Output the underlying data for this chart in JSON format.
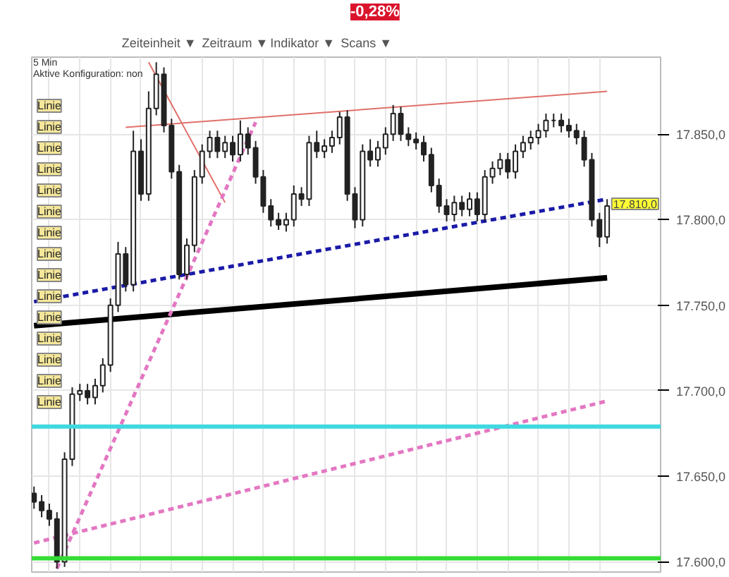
{
  "chart_data": {
    "type": "candlestick",
    "categories": [
      null,
      null,
      null,
      null,
      null,
      null,
      null,
      null,
      null,
      null,
      null,
      null,
      null,
      null,
      null,
      null,
      null,
      null,
      null,
      null,
      null,
      null,
      null,
      null,
      null,
      null,
      null,
      null,
      null,
      null,
      null,
      null,
      null,
      null,
      null,
      null,
      null,
      null,
      null,
      null,
      null,
      null,
      null,
      null,
      null,
      null,
      null,
      null,
      null,
      null,
      null,
      null,
      null,
      null,
      null,
      null,
      null,
      null,
      null,
      null,
      null,
      null,
      null,
      null,
      null,
      null,
      null,
      null,
      null,
      null,
      null,
      null,
      null,
      null,
      null,
      null
    ],
    "ohlc": [
      [
        17640,
        17644,
        17631,
        17635
      ],
      [
        17635,
        17639,
        17626,
        17630
      ],
      [
        17630,
        17634,
        17621,
        17625
      ],
      [
        17625,
        17629,
        17596,
        17600
      ],
      [
        17600,
        17664,
        17597,
        17660
      ],
      [
        17660,
        17702,
        17656,
        17698
      ],
      [
        17698,
        17704,
        17694,
        17700
      ],
      [
        17700,
        17704,
        17692,
        17696
      ],
      [
        17696,
        17707,
        17692,
        17703
      ],
      [
        17703,
        17719,
        17699,
        17715
      ],
      [
        17715,
        17754,
        17711,
        17750
      ],
      [
        17750,
        17787,
        17746,
        17780
      ],
      [
        17780,
        17784,
        17758,
        17762
      ],
      [
        17762,
        17852,
        17758,
        17840
      ],
      [
        17840,
        17847,
        17811,
        17815
      ],
      [
        17815,
        17875,
        17811,
        17865
      ],
      [
        17865,
        17892,
        17861,
        17885
      ],
      [
        17885,
        17889,
        17851,
        17855
      ],
      [
        17855,
        17859,
        17824,
        17828
      ],
      [
        17828,
        17832,
        17765,
        17768
      ],
      [
        17768,
        17789,
        17765,
        17785
      ],
      [
        17785,
        17829,
        17781,
        17825
      ],
      [
        17825,
        17844,
        17821,
        17840
      ],
      [
        17840,
        17852,
        17836,
        17848
      ],
      [
        17848,
        17852,
        17836,
        17840
      ],
      [
        17840,
        17849,
        17836,
        17845
      ],
      [
        17845,
        17849,
        17834,
        17838
      ],
      [
        17838,
        17858,
        17834,
        17850
      ],
      [
        17850,
        17854,
        17838,
        17842
      ],
      [
        17842,
        17846,
        17821,
        17825
      ],
      [
        17825,
        17829,
        17804,
        17808
      ],
      [
        17808,
        17812,
        17796,
        17800
      ],
      [
        17800,
        17804,
        17794,
        17797
      ],
      [
        17797,
        17804,
        17793,
        17800
      ],
      [
        17800,
        17820,
        17796,
        17815
      ],
      [
        17815,
        17819,
        17808,
        17812
      ],
      [
        17812,
        17849,
        17808,
        17845
      ],
      [
        17845,
        17852,
        17836,
        17840
      ],
      [
        17840,
        17847,
        17836,
        17843
      ],
      [
        17843,
        17852,
        17839,
        17848
      ],
      [
        17848,
        17863,
        17844,
        17860
      ],
      [
        17860,
        17864,
        17811,
        17815
      ],
      [
        17815,
        17819,
        17795,
        17800
      ],
      [
        17800,
        17844,
        17796,
        17840
      ],
      [
        17840,
        17847,
        17831,
        17835
      ],
      [
        17835,
        17846,
        17831,
        17842
      ],
      [
        17842,
        17854,
        17838,
        17850
      ],
      [
        17850,
        17867,
        17846,
        17862
      ],
      [
        17862,
        17866,
        17846,
        17850
      ],
      [
        17850,
        17854,
        17843,
        17847
      ],
      [
        17847,
        17851,
        17841,
        17845
      ],
      [
        17845,
        17849,
        17834,
        17838
      ],
      [
        17838,
        17842,
        17816,
        17820
      ],
      [
        17820,
        17824,
        17804,
        17808
      ],
      [
        17808,
        17812,
        17799,
        17803
      ],
      [
        17803,
        17814,
        17799,
        17810
      ],
      [
        17810,
        17814,
        17802,
        17806
      ],
      [
        17806,
        17816,
        17802,
        17812
      ],
      [
        17812,
        17816,
        17799,
        17803
      ],
      [
        17803,
        17829,
        17799,
        17825
      ],
      [
        17825,
        17834,
        17821,
        17830
      ],
      [
        17830,
        17839,
        17826,
        17835
      ],
      [
        17835,
        17839,
        17824,
        17828
      ],
      [
        17828,
        17844,
        17824,
        17840
      ],
      [
        17840,
        17849,
        17836,
        17845
      ],
      [
        17845,
        17852,
        17841,
        17848
      ],
      [
        17848,
        17856,
        17844,
        17852
      ],
      [
        17852,
        17862,
        17848,
        17858
      ],
      [
        17858,
        17862,
        17854,
        17858
      ],
      [
        17858,
        17862,
        17851,
        17855
      ],
      [
        17855,
        17859,
        17848,
        17852
      ],
      [
        17852,
        17856,
        17844,
        17848
      ],
      [
        17848,
        17852,
        17831,
        17835
      ],
      [
        17835,
        17839,
        17796,
        17800
      ],
      [
        17800,
        17804,
        17784,
        17790
      ],
      [
        17790,
        17812,
        17786,
        17808
      ]
    ],
    "color": "#222222",
    "series": [
      {
        "type": "line",
        "color": "#e0706a",
        "values": [
          null,
          null,
          null,
          null,
          null,
          null,
          null,
          null,
          null,
          null,
          null,
          null,
          17854,
          null,
          null,
          null,
          null,
          null,
          null,
          null,
          null,
          null,
          null,
          null,
          null,
          null,
          null,
          null,
          null,
          null,
          null,
          null,
          null,
          null,
          null,
          null,
          null,
          null,
          null,
          null,
          null,
          null,
          null,
          null,
          null,
          null,
          null,
          null,
          null,
          null,
          null,
          null,
          null,
          null,
          null,
          null,
          null,
          null,
          null,
          null,
          null,
          null,
          null,
          null,
          null,
          null,
          null,
          null,
          null,
          null,
          null,
          null,
          null,
          null,
          null,
          17875
        ]
      },
      {
        "type": "line",
        "color": "#e0706a",
        "values": [
          null,
          null,
          null,
          null,
          null,
          null,
          null,
          null,
          null,
          null,
          null,
          null,
          null,
          null,
          null,
          17892,
          null,
          null,
          null,
          null,
          null,
          null,
          null,
          null,
          null,
          17810,
          null,
          null,
          null,
          null,
          null,
          null,
          null,
          null,
          null,
          null,
          null,
          null,
          null,
          null,
          null,
          null,
          null,
          null,
          null,
          null,
          null,
          null,
          null,
          null,
          null,
          null,
          null,
          null,
          null,
          null,
          null,
          null,
          null,
          null,
          null,
          null,
          null,
          null,
          null,
          null,
          null,
          null,
          null,
          null,
          null,
          null,
          null,
          null,
          null,
          null
        ]
      },
      {
        "type": "line",
        "color": "#1a1aa8",
        "line_style": "dashed",
        "values": [
          17752,
          null,
          null,
          null,
          null,
          null,
          null,
          null,
          null,
          null,
          null,
          null,
          null,
          null,
          null,
          null,
          null,
          null,
          null,
          null,
          null,
          null,
          null,
          null,
          null,
          null,
          null,
          null,
          null,
          null,
          null,
          null,
          null,
          null,
          null,
          null,
          null,
          null,
          null,
          null,
          null,
          null,
          null,
          null,
          null,
          null,
          null,
          null,
          null,
          null,
          null,
          null,
          null,
          null,
          null,
          null,
          null,
          null,
          null,
          null,
          null,
          null,
          null,
          null,
          null,
          null,
          null,
          null,
          null,
          null,
          null,
          null,
          null,
          null,
          null,
          17812
        ]
      },
      {
        "type": "line",
        "color": "#000000",
        "values": [
          17738,
          null,
          null,
          null,
          null,
          null,
          null,
          null,
          null,
          null,
          null,
          null,
          null,
          null,
          null,
          null,
          null,
          null,
          null,
          null,
          null,
          null,
          null,
          null,
          null,
          null,
          null,
          null,
          null,
          null,
          null,
          null,
          null,
          null,
          null,
          null,
          null,
          null,
          null,
          null,
          null,
          null,
          null,
          null,
          null,
          null,
          null,
          null,
          null,
          null,
          null,
          null,
          null,
          null,
          null,
          null,
          null,
          null,
          null,
          null,
          null,
          null,
          null,
          null,
          null,
          null,
          null,
          null,
          null,
          null,
          null,
          null,
          null,
          null,
          null,
          17766
        ]
      },
      {
        "type": "line",
        "color": "#e377c2",
        "line_style": "dashed",
        "values": [
          null,
          null,
          null,
          17596,
          null,
          null,
          null,
          null,
          null,
          null,
          null,
          null,
          null,
          null,
          null,
          null,
          null,
          null,
          null,
          null,
          null,
          null,
          null,
          null,
          null,
          null,
          null,
          null,
          null,
          17857,
          null,
          null,
          null,
          null,
          null,
          null,
          null,
          null,
          null,
          null,
          null,
          null,
          null,
          null,
          null,
          null,
          null,
          null,
          null,
          null,
          null,
          null,
          null,
          null,
          null,
          null,
          null,
          null,
          null,
          null,
          null,
          null,
          null,
          null,
          null,
          null,
          null,
          null,
          null,
          null,
          null,
          null,
          null,
          null,
          null,
          null
        ]
      },
      {
        "type": "line",
        "color": "#e377c2",
        "line_style": "dashed",
        "values": [
          17611,
          null,
          null,
          null,
          null,
          null,
          null,
          null,
          null,
          null,
          null,
          null,
          null,
          null,
          null,
          null,
          null,
          null,
          null,
          null,
          null,
          null,
          null,
          null,
          null,
          null,
          null,
          null,
          null,
          null,
          null,
          null,
          null,
          null,
          null,
          null,
          null,
          null,
          null,
          null,
          null,
          null,
          null,
          null,
          null,
          null,
          null,
          null,
          null,
          null,
          null,
          null,
          null,
          null,
          null,
          null,
          null,
          null,
          null,
          null,
          null,
          null,
          null,
          null,
          null,
          null,
          null,
          null,
          null,
          null,
          null,
          null,
          null,
          null,
          null,
          17694
        ]
      }
    ],
    "ref_lines": [
      {
        "axis": "y",
        "value": 17679,
        "color": "#40d8e0"
      },
      {
        "axis": "y",
        "value": 17602,
        "color": "#33dd33"
      }
    ],
    "ylim": [
      17594,
      17895
    ],
    "yticks": [
      {
        "value": 17600,
        "label": "17.600,0"
      },
      {
        "value": 17650,
        "label": "17.650,0"
      },
      {
        "value": 17700,
        "label": "17.700,0"
      },
      {
        "value": 17750,
        "label": "17.750,0"
      },
      {
        "value": 17800,
        "label": "17.800,0"
      },
      {
        "value": 17850,
        "label": "17.850,0"
      }
    ],
    "grid": true,
    "annotations": [
      "-0,28%",
      "Zeiteinheit ▼",
      "Zeitraum ▼",
      "Indikator ▼",
      "Scans ▼",
      "5 Min",
      "Aktive Konfiguration: non",
      "Linie",
      "Linie",
      "Linie",
      "Linie",
      "Linie",
      "Linie",
      "Linie",
      "Linie",
      "Linie",
      "Linie",
      "Linie",
      "Linie",
      "Linie",
      "Linie",
      "Linie",
      "17.810,0"
    ]
  }
}
